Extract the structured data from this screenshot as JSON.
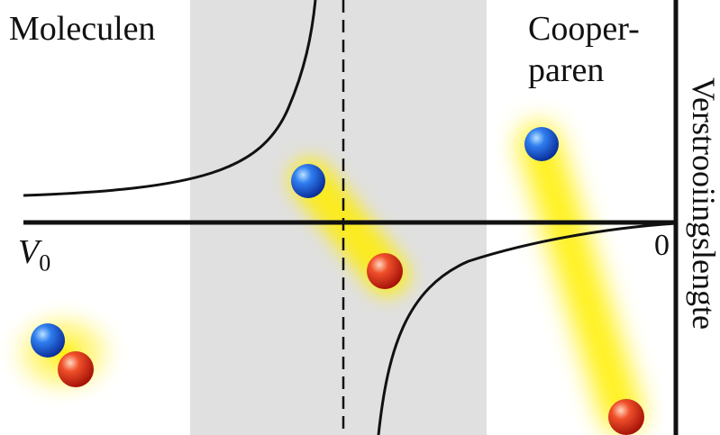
{
  "labels": {
    "molecules": "Moleculen",
    "cooper_line1": "Cooper-",
    "cooper_line2": "paren",
    "v0_main": "V",
    "v0_sub": "0",
    "zero": "0",
    "axis_label": "Verstrooiingslengte"
  },
  "colors": {
    "shaded_region": "#e0e0e0",
    "curve": "#111111",
    "glow": "#ffee00",
    "particle_blue": "#1a5bd6",
    "particle_red": "#e2341f"
  },
  "particles": [
    {
      "pair": "molecule",
      "color": "blue"
    },
    {
      "pair": "molecule",
      "color": "red"
    },
    {
      "pair": "middle",
      "color": "blue"
    },
    {
      "pair": "middle",
      "color": "red"
    },
    {
      "pair": "cooper",
      "color": "blue"
    },
    {
      "pair": "cooper",
      "color": "red"
    }
  ]
}
